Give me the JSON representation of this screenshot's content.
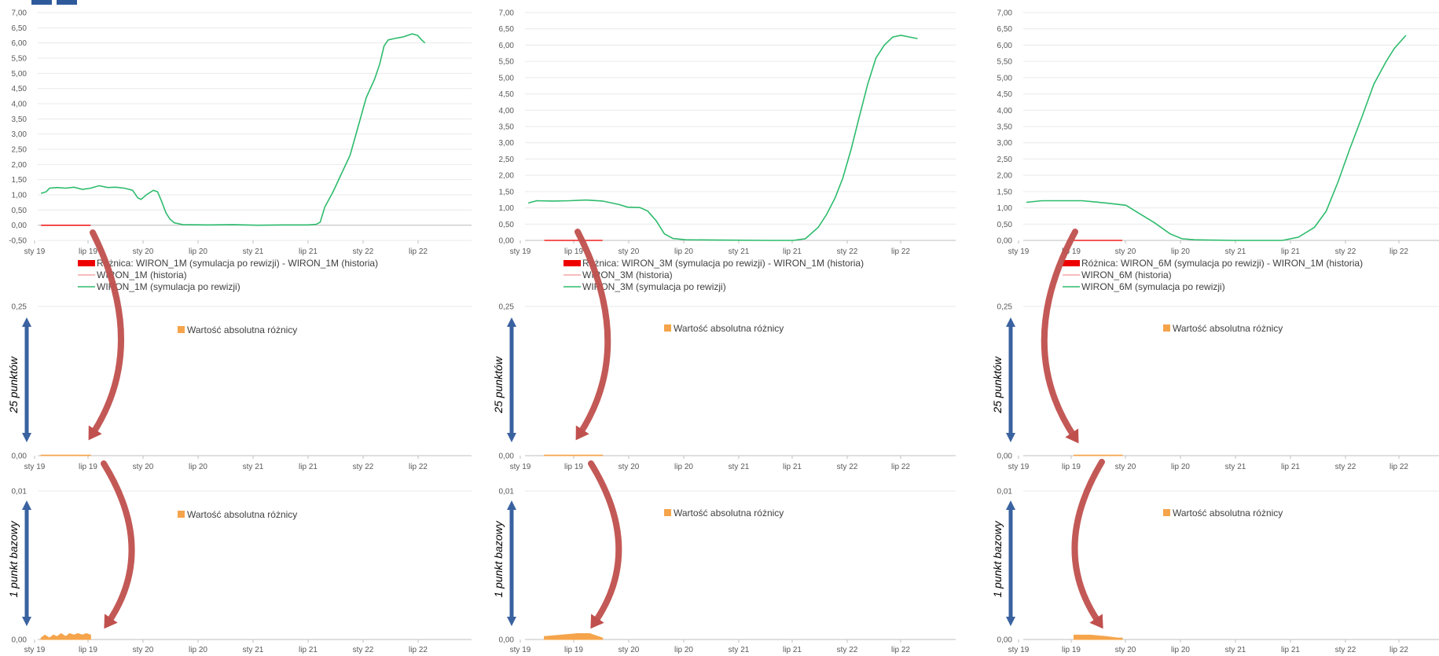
{
  "colors": {
    "green": "#2dbb6c",
    "red": "#ee0000",
    "pink": "#f4a6a6",
    "orange": "#f5a44b",
    "grid": "#e9e9e9",
    "blue_arrow": "#3a62a0",
    "red_arrow": "#c0504d"
  },
  "annotations": {
    "pct25": "25 punktów",
    "bp1": "1 punkt bazowy"
  },
  "chart_data": [
    {
      "type": "line",
      "panel": "col1-rates",
      "ylim": [
        -0.5,
        7.0
      ],
      "xlim": [
        "2018-12-20",
        "2023-04-20"
      ],
      "ytick_labels": [
        "-0,50",
        "0,00",
        "0,50",
        "1,00",
        "1,50",
        "2,00",
        "2,50",
        "3,00",
        "3,50",
        "4,00",
        "4,50",
        "5,00",
        "5,50",
        "6,00",
        "6,50",
        "7,00"
      ],
      "xtick_labels": [
        "sty 19",
        "lip 19",
        "sty 20",
        "lip 20",
        "sty 21",
        "lip 21",
        "sty 22",
        "lip 22"
      ],
      "legend": [
        {
          "label": "Różnica: WIRON_1M (symulacja po rewizji) - WIRON_1M (historia)",
          "style": "bar",
          "color": "#ee0000"
        },
        {
          "label": "WIRON_1M (historia)",
          "style": "line",
          "color": "#f4a6a6"
        },
        {
          "label": "WIRON_1M (symulacja po rewizji)",
          "style": "line",
          "color": "#2dbb6c"
        }
      ],
      "series": [
        {
          "name": "WIRON_1M (symulacja po rewizji)",
          "color": "#2dbb6c",
          "points": [
            [
              "2019-01-01",
              1.05
            ],
            [
              "2019-01-20",
              1.1
            ],
            [
              "2019-02-01",
              1.22
            ],
            [
              "2019-03-01",
              1.24
            ],
            [
              "2019-04-01",
              1.22
            ],
            [
              "2019-05-01",
              1.25
            ],
            [
              "2019-06-01",
              1.18
            ],
            [
              "2019-07-01",
              1.22
            ],
            [
              "2019-08-01",
              1.3
            ],
            [
              "2019-09-01",
              1.24
            ],
            [
              "2019-10-01",
              1.25
            ],
            [
              "2019-11-01",
              1.22
            ],
            [
              "2019-12-01",
              1.15
            ],
            [
              "2019-12-20",
              0.9
            ],
            [
              "2020-01-01",
              0.85
            ],
            [
              "2020-01-20",
              1.0
            ],
            [
              "2020-02-15",
              1.15
            ],
            [
              "2020-03-01",
              1.1
            ],
            [
              "2020-03-15",
              0.8
            ],
            [
              "2020-04-01",
              0.4
            ],
            [
              "2020-04-15",
              0.2
            ],
            [
              "2020-05-01",
              0.08
            ],
            [
              "2020-06-01",
              0.02
            ],
            [
              "2020-09-01",
              0.01
            ],
            [
              "2020-12-01",
              0.02
            ],
            [
              "2021-03-01",
              0.0
            ],
            [
              "2021-06-01",
              0.01
            ],
            [
              "2021-09-01",
              0.01
            ],
            [
              "2021-10-01",
              0.03
            ],
            [
              "2021-10-15",
              0.1
            ],
            [
              "2021-11-01",
              0.6
            ],
            [
              "2021-12-01",
              1.1
            ],
            [
              "2022-01-01",
              1.7
            ],
            [
              "2022-02-01",
              2.3
            ],
            [
              "2022-03-01",
              3.2
            ],
            [
              "2022-04-01",
              4.2
            ],
            [
              "2022-05-01",
              4.8
            ],
            [
              "2022-05-20",
              5.3
            ],
            [
              "2022-06-05",
              5.9
            ],
            [
              "2022-06-20",
              6.1
            ],
            [
              "2022-07-15",
              6.15
            ],
            [
              "2022-08-15",
              6.2
            ],
            [
              "2022-09-15",
              6.3
            ],
            [
              "2022-10-05",
              6.25
            ],
            [
              "2022-10-20",
              6.1
            ],
            [
              "2022-11-01",
              6.0
            ]
          ]
        },
        {
          "name": "WIRON_1M (historia)",
          "color": "#f4a6a6",
          "points": [
            [
              "2019-01-01",
              0.0
            ],
            [
              "2019-07-01",
              0.0
            ]
          ]
        },
        {
          "name": "Różnica",
          "color": "#ee0000",
          "points": [
            [
              "2019-01-01",
              0.0
            ],
            [
              "2019-07-01",
              0.0
            ]
          ]
        }
      ]
    },
    {
      "type": "area",
      "panel": "col1-diff-25",
      "ylim": [
        0,
        0.25
      ],
      "xlim": [
        "2018-12-20",
        "2023-04-20"
      ],
      "ytick_labels": [
        "0,00",
        "0,25"
      ],
      "xtick_labels": [
        "sty 19",
        "lip 19",
        "sty 20",
        "lip 20",
        "sty 21",
        "lip 21",
        "sty 22",
        "lip 22"
      ],
      "legend": [
        {
          "label": "Wartość absolutna różnicy",
          "style": "square",
          "color": "#f5a44b"
        }
      ],
      "series": [
        {
          "name": "Wartość absolutna różnicy",
          "color": "#f5a44b",
          "points": [
            [
              "2019-01-01",
              0.001
            ],
            [
              "2019-07-01",
              0.001
            ]
          ]
        }
      ]
    },
    {
      "type": "area",
      "panel": "col1-diff-1bp",
      "ylim": [
        0,
        0.01
      ],
      "xlim": [
        "2018-12-20",
        "2023-04-20"
      ],
      "ytick_labels": [
        "0,00",
        "0,01"
      ],
      "xtick_labels": [
        "sty 19",
        "lip 19",
        "sty 20",
        "lip 20",
        "sty 21",
        "lip 21",
        "sty 22",
        "lip 22"
      ],
      "legend": [
        {
          "label": "Wartość absolutna różnicy",
          "style": "square",
          "color": "#f5a44b"
        }
      ],
      "series": [
        {
          "name": "Wartość absolutna różnicy",
          "color": "#f5a44b",
          "points": [
            [
              "2019-01-01",
              0.0001
            ],
            [
              "2019-01-15",
              0.0003
            ],
            [
              "2019-02-01",
              0.0001
            ],
            [
              "2019-02-15",
              0.0003
            ],
            [
              "2019-03-01",
              0.0002
            ],
            [
              "2019-03-15",
              0.0004
            ],
            [
              "2019-04-01",
              0.0002
            ],
            [
              "2019-04-15",
              0.0004
            ],
            [
              "2019-05-01",
              0.0003
            ],
            [
              "2019-05-15",
              0.0004
            ],
            [
              "2019-06-01",
              0.0003
            ],
            [
              "2019-06-15",
              0.0004
            ],
            [
              "2019-07-01",
              0.0003
            ]
          ]
        }
      ]
    },
    {
      "type": "line",
      "panel": "col2-rates",
      "ylim": [
        0,
        7.0
      ],
      "xlim": [
        "2018-12-20",
        "2023-04-20"
      ],
      "ytick_labels": [
        "0,00",
        "0,50",
        "1,00",
        "1,50",
        "2,00",
        "2,50",
        "3,00",
        "3,50",
        "4,00",
        "4,50",
        "5,00",
        "5,50",
        "6,00",
        "6,50",
        "7,00"
      ],
      "xtick_labels": [
        "sty 19",
        "lip 19",
        "sty 20",
        "lip 20",
        "sty 21",
        "lip 21",
        "sty 22",
        "lip 22"
      ],
      "legend": [
        {
          "label": "Różnica: WIRON_3M (symulacja po rewizji) - WIRON_1M (historia)",
          "style": "bar",
          "color": "#ee0000"
        },
        {
          "label": "WIRON_3M (historia)",
          "style": "line",
          "color": "#f4a6a6"
        },
        {
          "label": "WIRON_3M (symulacja po rewizji)",
          "style": "line",
          "color": "#2dbb6c"
        }
      ],
      "series": [
        {
          "name": "WIRON_3M (symulacja po rewizji)",
          "color": "#2dbb6c",
          "points": [
            [
              "2019-01-01",
              1.15
            ],
            [
              "2019-02-01",
              1.22
            ],
            [
              "2019-04-01",
              1.21
            ],
            [
              "2019-06-01",
              1.22
            ],
            [
              "2019-08-01",
              1.24
            ],
            [
              "2019-10-01",
              1.21
            ],
            [
              "2019-12-01",
              1.1
            ],
            [
              "2020-01-01",
              1.02
            ],
            [
              "2020-02-15",
              1.01
            ],
            [
              "2020-03-15",
              0.9
            ],
            [
              "2020-04-15",
              0.6
            ],
            [
              "2020-05-15",
              0.2
            ],
            [
              "2020-06-15",
              0.06
            ],
            [
              "2020-08-01",
              0.02
            ],
            [
              "2020-12-01",
              0.01
            ],
            [
              "2021-06-01",
              0.0
            ],
            [
              "2021-09-01",
              0.0
            ],
            [
              "2021-10-15",
              0.05
            ],
            [
              "2021-12-01",
              0.4
            ],
            [
              "2022-01-01",
              0.8
            ],
            [
              "2022-02-01",
              1.3
            ],
            [
              "2022-03-01",
              1.9
            ],
            [
              "2022-04-01",
              2.8
            ],
            [
              "2022-05-01",
              3.8
            ],
            [
              "2022-06-01",
              4.8
            ],
            [
              "2022-07-01",
              5.6
            ],
            [
              "2022-08-01",
              6.0
            ],
            [
              "2022-09-01",
              6.25
            ],
            [
              "2022-10-01",
              6.3
            ],
            [
              "2022-11-01",
              6.25
            ],
            [
              "2022-12-01",
              6.2
            ]
          ]
        },
        {
          "name": "WIRON_3M (historia)",
          "color": "#f4a6a6",
          "points": [
            [
              "2019-03-01",
              0.0
            ],
            [
              "2019-10-01",
              0.0
            ]
          ]
        },
        {
          "name": "Różnica",
          "color": "#ee0000",
          "points": [
            [
              "2019-03-01",
              0.0
            ],
            [
              "2019-10-01",
              0.0
            ]
          ]
        }
      ]
    },
    {
      "type": "area",
      "panel": "col2-diff-25",
      "ylim": [
        0,
        0.25
      ],
      "xlim": [
        "2018-12-20",
        "2023-04-20"
      ],
      "ytick_labels": [
        "0,00",
        "0,25"
      ],
      "xtick_labels": [
        "sty 19",
        "lip 19",
        "sty 20",
        "lip 20",
        "sty 21",
        "lip 21",
        "sty 22",
        "lip 22"
      ],
      "legend": [
        {
          "label": "Wartość absolutna różnicy",
          "style": "square",
          "color": "#f5a44b"
        }
      ],
      "series": [
        {
          "name": "Wartość absolutna różnicy",
          "color": "#f5a44b",
          "points": [
            [
              "2019-03-01",
              0.001
            ],
            [
              "2019-10-01",
              0.001
            ]
          ]
        }
      ]
    },
    {
      "type": "area",
      "panel": "col2-diff-1bp",
      "ylim": [
        0,
        0.01
      ],
      "xlim": [
        "2018-12-20",
        "2023-04-20"
      ],
      "ytick_labels": [
        "0,00",
        "0,01"
      ],
      "xtick_labels": [
        "sty 19",
        "lip 19",
        "sty 20",
        "lip 20",
        "sty 21",
        "lip 21",
        "sty 22",
        "lip 22"
      ],
      "legend": [
        {
          "label": "Wartość absolutna różnicy",
          "style": "square",
          "color": "#f5a44b"
        }
      ],
      "series": [
        {
          "name": "Wartość absolutna różnicy",
          "color": "#f5a44b",
          "points": [
            [
              "2019-03-01",
              0.0002
            ],
            [
              "2019-05-01",
              0.0003
            ],
            [
              "2019-07-01",
              0.0004
            ],
            [
              "2019-08-15",
              0.0004
            ],
            [
              "2019-09-15",
              0.0002
            ],
            [
              "2019-10-01",
              0.0001
            ]
          ]
        }
      ]
    },
    {
      "type": "line",
      "panel": "col3-rates",
      "ylim": [
        0,
        7.0
      ],
      "xlim": [
        "2018-12-20",
        "2023-04-20"
      ],
      "ytick_labels": [
        "0,00",
        "0,50",
        "1,00",
        "1,50",
        "2,00",
        "2,50",
        "3,00",
        "3,50",
        "4,00",
        "4,50",
        "5,00",
        "5,50",
        "6,00",
        "6,50",
        "7,00"
      ],
      "xtick_labels": [
        "sty 19",
        "lip 19",
        "sty 20",
        "lip 20",
        "sty 21",
        "lip 21",
        "sty 22",
        "lip 22"
      ],
      "legend": [
        {
          "label": "Różnica: WIRON_6M (symulacja po rewizji) - WIRON_1M (historia)",
          "style": "bar",
          "color": "#ee0000"
        },
        {
          "label": "WIRON_6M (historia)",
          "style": "line",
          "color": "#f4a6a6"
        },
        {
          "label": "WIRON_6M (symulacja po rewizji)",
          "style": "line",
          "color": "#2dbb6c"
        }
      ],
      "series": [
        {
          "name": "WIRON_6M (symulacja po rewizji)",
          "color": "#2dbb6c",
          "points": [
            [
              "2019-01-01",
              1.17
            ],
            [
              "2019-03-01",
              1.22
            ],
            [
              "2019-08-01",
              1.22
            ],
            [
              "2019-11-01",
              1.15
            ],
            [
              "2020-01-15",
              1.08
            ],
            [
              "2020-03-01",
              0.85
            ],
            [
              "2020-05-01",
              0.55
            ],
            [
              "2020-07-01",
              0.2
            ],
            [
              "2020-08-15",
              0.05
            ],
            [
              "2020-10-01",
              0.02
            ],
            [
              "2021-03-01",
              0.0
            ],
            [
              "2021-09-01",
              0.0
            ],
            [
              "2021-11-01",
              0.1
            ],
            [
              "2022-01-01",
              0.4
            ],
            [
              "2022-02-15",
              0.9
            ],
            [
              "2022-04-01",
              1.8
            ],
            [
              "2022-05-15",
              2.8
            ],
            [
              "2022-07-01",
              3.8
            ],
            [
              "2022-08-15",
              4.8
            ],
            [
              "2022-10-01",
              5.5
            ],
            [
              "2022-11-01",
              5.9
            ],
            [
              "2022-12-15",
              6.3
            ]
          ]
        },
        {
          "name": "WIRON_6M (historia)",
          "color": "#f4a6a6",
          "points": [
            [
              "2019-07-01",
              0.0
            ],
            [
              "2020-01-01",
              0.0
            ]
          ]
        },
        {
          "name": "Różnica",
          "color": "#ee0000",
          "points": [
            [
              "2019-07-01",
              0.0
            ],
            [
              "2020-01-01",
              0.0
            ]
          ]
        }
      ]
    },
    {
      "type": "area",
      "panel": "col3-diff-25",
      "ylim": [
        0,
        0.25
      ],
      "xlim": [
        "2018-12-20",
        "2023-04-20"
      ],
      "ytick_labels": [
        "0,00",
        "0,25"
      ],
      "xtick_labels": [
        "sty 19",
        "lip 19",
        "sty 20",
        "lip 20",
        "sty 21",
        "lip 21",
        "sty 22",
        "lip 22"
      ],
      "legend": [
        {
          "label": "Wartość absolutna różnicy",
          "style": "square",
          "color": "#f5a44b"
        }
      ],
      "series": [
        {
          "name": "Wartość absolutna różnicy",
          "color": "#f5a44b",
          "points": [
            [
              "2019-07-01",
              0.001
            ],
            [
              "2020-01-01",
              0.001
            ]
          ]
        }
      ]
    },
    {
      "type": "area",
      "panel": "col3-diff-1bp",
      "ylim": [
        0,
        0.01
      ],
      "xlim": [
        "2018-12-20",
        "2023-04-20"
      ],
      "ytick_labels": [
        "0,00",
        "0,01"
      ],
      "xtick_labels": [
        "sty 19",
        "lip 19",
        "sty 20",
        "lip 20",
        "sty 21",
        "lip 21",
        "sty 22",
        "lip 22"
      ],
      "legend": [
        {
          "label": "Wartość absolutna różnicy",
          "style": "square",
          "color": "#f5a44b"
        }
      ],
      "series": [
        {
          "name": "Wartość absolutna różnicy",
          "color": "#f5a44b",
          "points": [
            [
              "2019-07-01",
              0.0003
            ],
            [
              "2019-09-01",
              0.0003
            ],
            [
              "2019-11-01",
              0.0002
            ],
            [
              "2019-12-15",
              0.0001
            ],
            [
              "2020-01-01",
              0.0001
            ]
          ]
        }
      ]
    }
  ]
}
